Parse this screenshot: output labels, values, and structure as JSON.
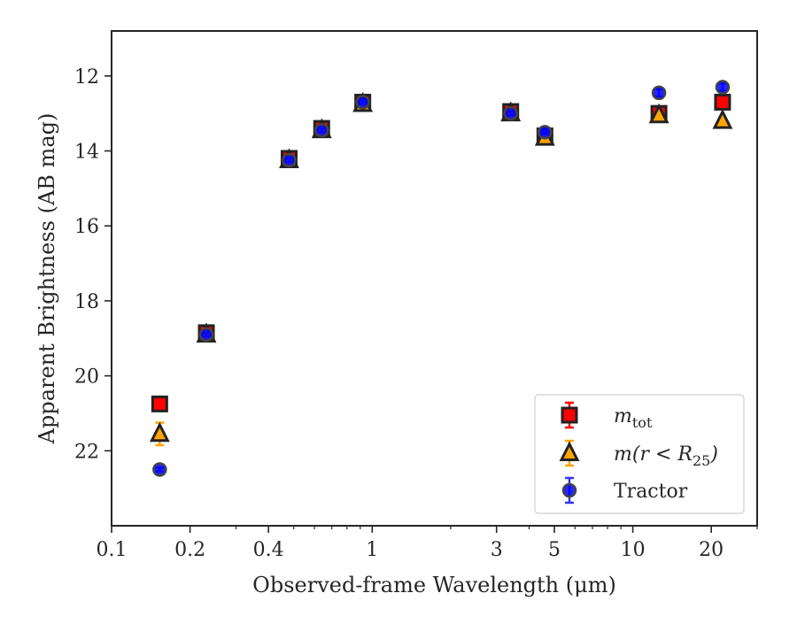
{
  "chart_data": {
    "type": "scatter",
    "xlabel": "Observed-frame Wavelength (μm)",
    "ylabel": "Apparent Brightness (AB mag)",
    "x_scale": "log",
    "xlim": [
      0.1,
      30
    ],
    "ylim": [
      24,
      10.8
    ],
    "y_inverted": true,
    "x_ticks": [
      0.1,
      0.2,
      0.4,
      1,
      3,
      5,
      10,
      20
    ],
    "x_tick_labels": [
      "0.1",
      "0.2",
      "0.4",
      "1",
      "3",
      "5",
      "10",
      "20"
    ],
    "y_ticks": [
      12,
      14,
      16,
      18,
      20,
      22
    ],
    "y_tick_labels": [
      "12",
      "14",
      "16",
      "18",
      "20",
      "22"
    ],
    "grid": false,
    "legend_position": "lower-right",
    "series": [
      {
        "name": "m_tot",
        "legend_label": {
          "base": "m",
          "sub": "tot"
        },
        "marker": "square",
        "color": "#ff0000",
        "edge_color": "#222222",
        "errorbar_color": "#ff0000",
        "x": [
          0.153,
          0.231,
          0.48,
          0.64,
          0.92,
          3.4,
          4.6,
          12.6,
          22.1
        ],
        "y": [
          20.75,
          18.85,
          14.2,
          13.4,
          12.7,
          12.95,
          13.6,
          13.0,
          12.7
        ],
        "yerr": [
          0.1,
          0.1,
          0.05,
          0.05,
          0.05,
          0.05,
          0.05,
          0.05,
          0.05
        ]
      },
      {
        "name": "m(r<R25)",
        "legend_label": {
          "base": "m(r < R",
          "sub": "25",
          "tail": ")"
        },
        "marker": "triangle",
        "color": "#ffa500",
        "edge_color": "#222222",
        "errorbar_color": "#ffa500",
        "x": [
          0.153,
          0.231,
          0.48,
          0.64,
          0.92,
          3.4,
          4.6,
          12.6,
          22.1
        ],
        "y": [
          21.55,
          18.9,
          14.25,
          13.45,
          12.75,
          13.0,
          13.65,
          13.05,
          13.2
        ],
        "yerr": [
          0.3,
          0.1,
          0.05,
          0.05,
          0.05,
          0.05,
          0.05,
          0.05,
          0.05
        ]
      },
      {
        "name": "Tractor",
        "legend_label": {
          "base": "Tractor"
        },
        "marker": "circle",
        "color": "#0000ff",
        "edge_color": "#444444",
        "errorbar_color": "#3333ff",
        "x": [
          0.153,
          0.231,
          0.48,
          0.64,
          0.92,
          3.4,
          4.6,
          12.6,
          22.1
        ],
        "y": [
          22.5,
          18.9,
          14.25,
          13.45,
          12.7,
          13.0,
          13.5,
          12.45,
          12.3
        ],
        "yerr": [
          0.05,
          0.05,
          0.05,
          0.05,
          0.05,
          0.05,
          0.05,
          0.1,
          0.1
        ]
      }
    ]
  }
}
